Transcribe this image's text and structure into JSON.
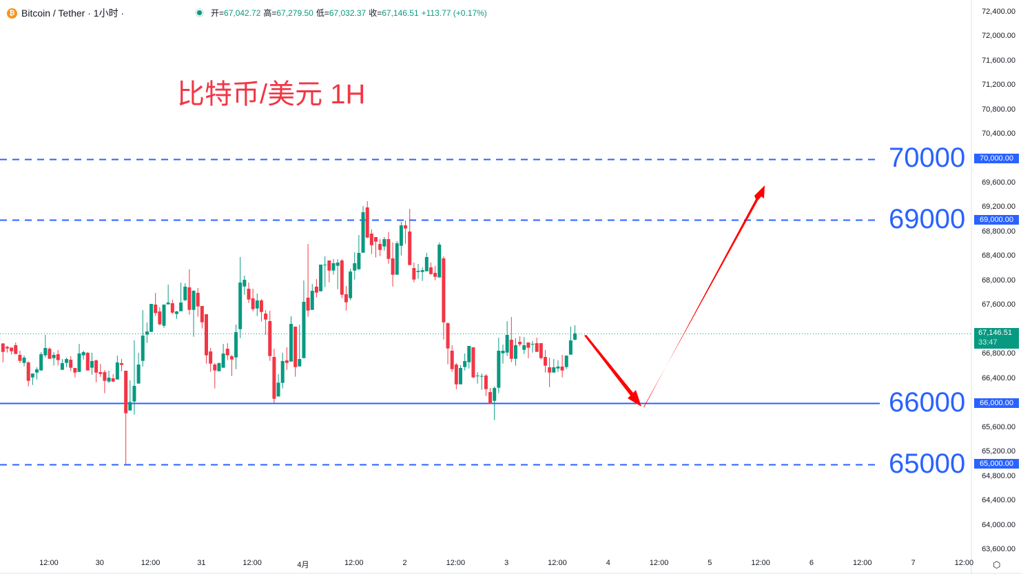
{
  "header": {
    "symbol": "Bitcoin / Tether · 1小时 ·",
    "coin_icon": "bitcoin-icon",
    "open_label": "开=",
    "open": "67,042.72",
    "high_label": "高=",
    "high": "67,279.50",
    "low_label": "低=",
    "low": "67,032.37",
    "close_label": "收=",
    "close": "67,146.51",
    "change": "+113.77 (+0.17%)"
  },
  "annotation_title": "比特币/美元 1H",
  "levels": [
    {
      "price": 70000,
      "label": "70000",
      "badge": "70,000.00",
      "style": "dashed"
    },
    {
      "price": 69000,
      "label": "69000",
      "badge": "69,000.00",
      "style": "dashed"
    },
    {
      "price": 66000,
      "label": "66000",
      "badge": "66,000.00",
      "style": "solid"
    },
    {
      "price": 65000,
      "label": "65000",
      "badge": "65,000.00",
      "style": "dashed"
    }
  ],
  "current_price": {
    "price": 67146.51,
    "label": "67,146.51",
    "countdown": "33:47"
  },
  "colors": {
    "up": "#089981",
    "down": "#f23645",
    "level": "#2962ff",
    "arrow": "#ff0000",
    "title": "#f23645"
  },
  "chart_data": {
    "type": "candlestick",
    "interval": "1H",
    "ylim": [
      63500,
      72500
    ],
    "y_ticks": [
      "72,400.00",
      "72,000.00",
      "71,600.00",
      "71,200.00",
      "70,800.00",
      "70,400.00",
      "69,600.00",
      "69,200.00",
      "68,800.00",
      "68,400.00",
      "68,000.00",
      "67,600.00",
      "66,800.00",
      "66,400.00",
      "65,600.00",
      "65,200.00",
      "64,800.00",
      "64,400.00",
      "64,000.00",
      "63,600.00"
    ],
    "x_ticks": [
      "12:00",
      "30",
      "12:00",
      "31",
      "12:00",
      "4月",
      "12:00",
      "2",
      "12:00",
      "3",
      "12:00",
      "4",
      "12:00",
      "5",
      "12:00",
      "6",
      "12:00",
      "7",
      "12:00"
    ],
    "candles_ohlc": [
      [
        66982,
        66982,
        66670,
        66843
      ],
      [
        66926,
        66941,
        66832,
        66899
      ],
      [
        66914,
        66914,
        66798,
        66854
      ],
      [
        66952,
        66997,
        66809,
        66809
      ],
      [
        66794,
        66862,
        66659,
        66696
      ],
      [
        66663,
        66783,
        66606,
        66749
      ],
      [
        66670,
        66693,
        66279,
        66370
      ],
      [
        66426,
        66490,
        66302,
        66490
      ],
      [
        66505,
        66591,
        66392,
        66557
      ],
      [
        66539,
        66839,
        66539,
        66805
      ],
      [
        66787,
        67121,
        66753,
        66907
      ],
      [
        66895,
        66918,
        66730,
        66730
      ],
      [
        66741,
        66839,
        66618,
        66794
      ],
      [
        66805,
        66873,
        66618,
        66708
      ],
      [
        66550,
        66726,
        66550,
        66659
      ],
      [
        66663,
        66749,
        66591,
        66726
      ],
      [
        66715,
        66772,
        66527,
        66584
      ],
      [
        66580,
        66580,
        66426,
        66505
      ],
      [
        66516,
        66974,
        66516,
        66817
      ],
      [
        66787,
        66862,
        66719,
        66839
      ],
      [
        66828,
        66839,
        66539,
        66539
      ],
      [
        66584,
        66828,
        66471,
        66693
      ],
      [
        66704,
        66715,
        66347,
        66505
      ],
      [
        66512,
        66647,
        66437,
        66482
      ],
      [
        66512,
        66546,
        66167,
        66370
      ],
      [
        66358,
        66535,
        66336,
        66422
      ],
      [
        66411,
        66479,
        66347,
        66358
      ],
      [
        66392,
        66783,
        66392,
        66670
      ],
      [
        66659,
        66726,
        66527,
        66629
      ],
      [
        66535,
        66535,
        65002,
        65840
      ],
      [
        65885,
        66377,
        65885,
        66024
      ],
      [
        66032,
        67031,
        65818,
        66287
      ],
      [
        66325,
        66828,
        66325,
        66636
      ],
      [
        66696,
        67526,
        66606,
        67110
      ],
      [
        67125,
        67324,
        66989,
        67177
      ],
      [
        67170,
        67628,
        67170,
        67628
      ],
      [
        67617,
        67808,
        67429,
        67478
      ],
      [
        67504,
        67572,
        67279,
        67294
      ],
      [
        67271,
        67617,
        67237,
        67617
      ],
      [
        67620,
        67944,
        67620,
        67650
      ],
      [
        67639,
        67696,
        67463,
        67485
      ],
      [
        67463,
        67515,
        67384,
        67504
      ],
      [
        67508,
        67977,
        67508,
        67650
      ],
      [
        67688,
        67966,
        67677,
        67910
      ],
      [
        67898,
        68191,
        67451,
        67530
      ],
      [
        67530,
        67853,
        67091,
        67842
      ],
      [
        67808,
        67887,
        67418,
        67587
      ],
      [
        67594,
        67594,
        67226,
        67327
      ],
      [
        67459,
        67459,
        66651,
        66787
      ],
      [
        66850,
        66907,
        66516,
        66651
      ],
      [
        66636,
        66659,
        66246,
        66539
      ],
      [
        66527,
        66670,
        66527,
        66659
      ],
      [
        66584,
        66974,
        66584,
        66817
      ],
      [
        66895,
        66986,
        66708,
        66787
      ],
      [
        66772,
        66794,
        66449,
        66719
      ],
      [
        66753,
        67290,
        66561,
        67166
      ],
      [
        67215,
        68394,
        67068,
        67977
      ],
      [
        67913,
        68090,
        67778,
        68022
      ],
      [
        67876,
        67977,
        67643,
        67699
      ],
      [
        67718,
        67876,
        67508,
        67542
      ],
      [
        67553,
        67797,
        67429,
        67684
      ],
      [
        67684,
        67707,
        67339,
        67496
      ],
      [
        67470,
        67526,
        67125,
        67372
      ],
      [
        67346,
        67515,
        66696,
        66775
      ],
      [
        66760,
        66895,
        66009,
        66077
      ],
      [
        66114,
        66479,
        66114,
        66340
      ],
      [
        66336,
        66828,
        66246,
        66693
      ],
      [
        66704,
        66918,
        66550,
        66663
      ],
      [
        66685,
        67425,
        66685,
        67301
      ],
      [
        67256,
        67256,
        66437,
        66595
      ],
      [
        66606,
        67290,
        66606,
        66726
      ],
      [
        66741,
        68011,
        66741,
        67662
      ],
      [
        67729,
        68608,
        67418,
        67519
      ],
      [
        67530,
        67955,
        67530,
        67842
      ],
      [
        67910,
        68034,
        67733,
        67812
      ],
      [
        67834,
        68270,
        67834,
        68270
      ],
      [
        68259,
        68405,
        67902,
        68270
      ],
      [
        68338,
        68338,
        67981,
        68173
      ],
      [
        68173,
        68360,
        68105,
        68293
      ],
      [
        68251,
        68360,
        67868,
        68304
      ],
      [
        68338,
        68360,
        67722,
        67778
      ],
      [
        67786,
        67921,
        67519,
        67654
      ],
      [
        67722,
        68203,
        67688,
        68157
      ],
      [
        68173,
        68473,
        68026,
        68293
      ],
      [
        68195,
        68755,
        68184,
        68462
      ],
      [
        68465,
        69228,
        68465,
        69127
      ],
      [
        69206,
        69307,
        68702,
        68713
      ],
      [
        68777,
        68845,
        68443,
        68589
      ],
      [
        68721,
        68721,
        68387,
        68646
      ],
      [
        68608,
        68687,
        68409,
        68511
      ],
      [
        68567,
        68721,
        68499,
        68687
      ],
      [
        68687,
        68800,
        68285,
        68364
      ],
      [
        68372,
        68631,
        67913,
        68105
      ],
      [
        68105,
        68653,
        68105,
        68619
      ],
      [
        68578,
        68969,
        68420,
        68912
      ],
      [
        68912,
        68991,
        68612,
        68860
      ],
      [
        68811,
        69183,
        68263,
        68263
      ],
      [
        68214,
        68304,
        67981,
        68026
      ],
      [
        68150,
        68281,
        68037,
        68169
      ],
      [
        68150,
        68225,
        68004,
        68180
      ],
      [
        68161,
        68462,
        68161,
        68394
      ],
      [
        68225,
        68304,
        68105,
        68116
      ],
      [
        68135,
        68248,
        68015,
        68071
      ],
      [
        68060,
        68631,
        68060,
        68597
      ],
      [
        68372,
        68405,
        67046,
        67327
      ],
      [
        67312,
        67324,
        66640,
        66899
      ],
      [
        66862,
        66952,
        66516,
        66561
      ],
      [
        66636,
        66659,
        66234,
        66313
      ],
      [
        66313,
        66625,
        66313,
        66580
      ],
      [
        66595,
        66817,
        66539,
        66693
      ],
      [
        66674,
        66941,
        66572,
        66941
      ],
      [
        66918,
        66918,
        66415,
        66426
      ],
      [
        66449,
        66512,
        66325,
        66456
      ],
      [
        66441,
        66490,
        66223,
        66449
      ],
      [
        66456,
        66479,
        66122,
        66234
      ],
      [
        66186,
        66253,
        65998,
        65998
      ],
      [
        66043,
        66276,
        65727,
        66253
      ],
      [
        66257,
        67076,
        66167,
        66862
      ],
      [
        66820,
        66963,
        66651,
        66862
      ],
      [
        66832,
        67346,
        66775,
        67121
      ],
      [
        67042,
        67414,
        66674,
        66730
      ],
      [
        66730,
        67065,
        66618,
        66952
      ],
      [
        67008,
        67098,
        66933,
        66967
      ],
      [
        66877,
        67087,
        66809,
        66952
      ],
      [
        66997,
        66997,
        66741,
        66911
      ],
      [
        66967,
        67019,
        66832,
        66974
      ],
      [
        66986,
        67076,
        66843,
        66843
      ],
      [
        66986,
        66986,
        66719,
        66741
      ],
      [
        66760,
        66873,
        66505,
        66618
      ],
      [
        66591,
        66749,
        66268,
        66505
      ],
      [
        66505,
        66726,
        66505,
        66591
      ],
      [
        66572,
        66704,
        66516,
        66603
      ],
      [
        66603,
        66794,
        66426,
        66539
      ],
      [
        66595,
        66783,
        66561,
        66783
      ],
      [
        66798,
        67256,
        66798,
        67031
      ],
      [
        67042.72,
        67279.5,
        67032.37,
        67146.51
      ]
    ]
  },
  "settings_icon": "settings-hexagon-icon"
}
